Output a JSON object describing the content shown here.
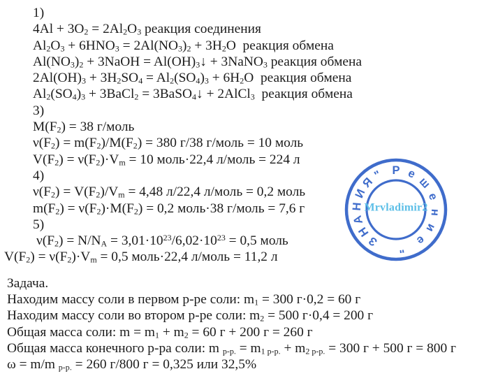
{
  "page": {
    "background": "#ffffff",
    "text_color": "#1c1c1c"
  },
  "document": {
    "part1": [
      "1)",
      "4Al + 3O~2~ = 2Al~2~O~3~ реакция соединения",
      "Al~2~O~3~ + 6HNO~3~ = 2Al(NO~3~)~2~ + 3H~2~O  реакция обмена",
      "Al(NO~3~)~2~ + 3NaOH = Al(OH)~3~↓ + 3NaNO~3~ реакция обмена",
      "2Al(OH)~3~ + 3H~2~SO~4~ = Al~2~(SO~4~)~3~ + 6H~2~O  реакция обмена",
      "Al~2~(SO~4~)~3~ + 3BaCl~2~ = 3BaSO~4~↓ + 2AlCl~3~  реакция обмена",
      "3)",
      "M(F~2~) = 38 г/моль",
      "ν(F~2~) = m(F~2~)/M(F~2~) = 380 г/38 г/моль = 10 моль",
      "V(F~2~) = ν(F~2~)·V~m~ = 10 моль·22,4 л/моль = 224 л",
      "4)",
      "ν(F~2~) = V(F~2~)/V~m~ = 4,48 л/22,4 л/моль = 0,2 моль",
      "m(F~2~) = ν(F~2~)·M(F~2~) = 0,2 моль·38 г/моль = 7,6 г",
      "5)",
      "ν(F~2~) = N/N~A~ = 3,01·10^23^/6,02·10^23^ = 0,5 моль",
      "V(F~2~) = ν(F~2~)·V~m~ = 0,5 моль·22,4 л/моль = 11,2 л"
    ],
    "part2": [
      "Задача.",
      "Находим массу соли в первом р-ре соли: m~1~ = 300 г·0,2 = 60 г",
      "Находим массу соли во втором р-ре соли: m~2~ = 500 г·0,4 = 200 г",
      "Общая масса соли: m = m~1~ + m~2~ = 60 г + 200 г = 260 г",
      "Общая масса конечного р-ра соли: m ~р-р.~ = m~1 р-р.~ + m~2 р-р.~ = 300 г + 500 г = 800 г",
      "ω = m/m ~р-р.~ = 260 г/800 г = 0,325 или 32,5%"
    ]
  },
  "stamp": {
    "ring_text_primary": "Решение",
    "quote_open": "\"",
    "ring_text_secondary": "ЗНАНИЯ",
    "quote_close": "\"",
    "center_text": "Mrvladimir2",
    "ring_color": "#3565c9",
    "center_text_color": "#55bce6"
  }
}
